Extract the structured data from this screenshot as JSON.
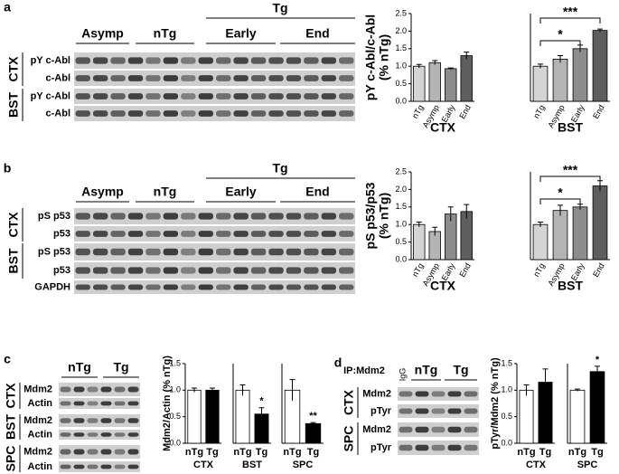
{
  "panel_a": {
    "label": "a",
    "tg": "Tg",
    "groups": [
      "Asymp",
      "nTg",
      "Early",
      "End"
    ],
    "rows": [
      "pY c-Abl",
      "c-Abl",
      "pY c-Abl",
      "c-Abl"
    ],
    "regions": [
      "CTX",
      "BST"
    ]
  },
  "panel_b": {
    "label": "b",
    "tg": "Tg",
    "groups": [
      "Asymp",
      "nTg",
      "Early",
      "End"
    ],
    "rows": [
      "pS p53",
      "p53",
      "pS p53",
      "p53",
      "GAPDH"
    ],
    "regions": [
      "CTX",
      "BST"
    ]
  },
  "panel_c": {
    "label": "c",
    "groups": [
      "nTg",
      "Tg"
    ],
    "rows": [
      "Mdm2",
      "Actin",
      "Mdm2",
      "Actin",
      "Mdm2",
      "Actin"
    ],
    "regions": [
      "CTX",
      "BST",
      "SPC"
    ]
  },
  "panel_d": {
    "label": "d",
    "ip": "IP:Mdm2",
    "igg": "IgG",
    "groups": [
      "nTg",
      "Tg"
    ],
    "rows": [
      "Mdm2",
      "pTyr",
      "Mdm2",
      "pTyr"
    ],
    "regions": [
      "CTX",
      "SPC"
    ]
  },
  "chart_data": [
    {
      "type": "bar",
      "ylabel": [
        "pY c-Abl/c-Abl",
        "(% nTg)"
      ],
      "xlabel": "CTX",
      "categories": [
        "nTg",
        "Asymp",
        "Early",
        "End"
      ],
      "values": [
        1.0,
        1.1,
        0.93,
        1.3
      ],
      "errors": [
        0.05,
        0.06,
        0.02,
        0.1
      ],
      "colors": [
        "#d4d4d4",
        "#b4b4b4",
        "#8c8c8c",
        "#5e5e5e"
      ],
      "ylim": [
        0,
        2.5
      ],
      "yticks": [
        {
          "value": 0,
          "label": "0.0"
        },
        {
          "value": 0.5,
          "label": "0.5"
        },
        {
          "value": 1,
          "label": "1.0"
        },
        {
          "value": 1.5,
          "label": "1.5"
        },
        {
          "value": 2,
          "label": "2.0"
        },
        {
          "value": 2.5,
          "label": "2.5"
        }
      ]
    },
    {
      "type": "bar",
      "xlabel": "BST",
      "categories": [
        "nTg",
        "Asymp",
        "Early",
        "End"
      ],
      "values": [
        1.0,
        1.2,
        1.5,
        2.02
      ],
      "errors": [
        0.06,
        0.1,
        0.1,
        0.04
      ],
      "colors": [
        "#d4d4d4",
        "#b4b4b4",
        "#8c8c8c",
        "#5e5e5e"
      ],
      "ylim": [
        0,
        2.5
      ],
      "brackets": [
        "*",
        "***"
      ]
    },
    {
      "type": "bar",
      "ylabel": [
        "pS p53/p53",
        "(% nTg)"
      ],
      "xlabel": "CTX",
      "categories": [
        "nTg",
        "Asymp",
        "Early",
        "End"
      ],
      "values": [
        1.0,
        0.8,
        1.3,
        1.37
      ],
      "errors": [
        0.07,
        0.12,
        0.2,
        0.2
      ],
      "colors": [
        "#d4d4d4",
        "#b4b4b4",
        "#8c8c8c",
        "#5e5e5e"
      ],
      "ylim": [
        0,
        2.5
      ],
      "yticks": [
        {
          "value": 0,
          "label": "0.0"
        },
        {
          "value": 0.5,
          "label": "0.5"
        },
        {
          "value": 1,
          "label": "1.0"
        },
        {
          "value": 1.5,
          "label": "1.5"
        },
        {
          "value": 2,
          "label": "2.0"
        },
        {
          "value": 2.5,
          "label": "2.5"
        }
      ]
    },
    {
      "type": "bar",
      "xlabel": "BST",
      "categories": [
        "nTg",
        "Asymp",
        "Early",
        "End"
      ],
      "values": [
        1.0,
        1.4,
        1.5,
        2.1
      ],
      "errors": [
        0.07,
        0.15,
        0.08,
        0.15
      ],
      "colors": [
        "#d4d4d4",
        "#b4b4b4",
        "#8c8c8c",
        "#5e5e5e"
      ],
      "ylim": [
        0,
        2.5
      ],
      "brackets": [
        "*",
        "***"
      ]
    },
    {
      "type": "bar",
      "ylabel": [
        "Mdm2/Actin (% nTg)"
      ],
      "xlabel": "CTX",
      "categories": [
        "nTg",
        "Tg"
      ],
      "values": [
        1.0,
        1.0
      ],
      "errors": [
        0.04,
        0.04
      ],
      "colors": [
        "#ffffff",
        "#000000"
      ],
      "ylim": [
        0,
        1.5
      ],
      "yticks": [
        {
          "value": 0,
          "label": "0.0"
        },
        {
          "value": 0.5,
          "label": "0.5"
        },
        {
          "value": 1,
          "label": "1.0"
        },
        {
          "value": 1.5,
          "label": "1.5"
        }
      ]
    },
    {
      "type": "bar",
      "xlabel": "BST",
      "categories": [
        "nTg",
        "Tg"
      ],
      "values": [
        1.0,
        0.55
      ],
      "errors": [
        0.1,
        0.12
      ],
      "colors": [
        "#ffffff",
        "#000000"
      ],
      "ylim": [
        0,
        1.5
      ],
      "significance": [
        null,
        "*"
      ]
    },
    {
      "type": "bar",
      "xlabel": "SPC",
      "categories": [
        "nTg",
        "Tg"
      ],
      "values": [
        1.0,
        0.37
      ],
      "errors": [
        0.2,
        0.02
      ],
      "colors": [
        "#ffffff",
        "#000000"
      ],
      "ylim": [
        0,
        1.5
      ],
      "significance": [
        null,
        "**"
      ]
    },
    {
      "type": "bar",
      "ylabel": [
        "pTyr/Mdm2 (% nTg)"
      ],
      "xlabel": "CTX",
      "categories": [
        "nTg",
        "Tg"
      ],
      "values": [
        1.0,
        1.15
      ],
      "errors": [
        0.1,
        0.25
      ],
      "colors": [
        "#ffffff",
        "#000000"
      ],
      "ylim": [
        0,
        1.5
      ],
      "yticks": [
        {
          "value": 0,
          "label": "0.0"
        },
        {
          "value": 0.5,
          "label": "0.5"
        },
        {
          "value": 1,
          "label": "1.0"
        },
        {
          "value": 1.5,
          "label": "1.5"
        }
      ]
    },
    {
      "type": "bar",
      "xlabel": "SPC",
      "categories": [
        "nTg",
        "Tg"
      ],
      "values": [
        1.0,
        1.35
      ],
      "errors": [
        0.02,
        0.1
      ],
      "colors": [
        "#ffffff",
        "#000000"
      ],
      "ylim": [
        0,
        1.5
      ],
      "significance": [
        null,
        "*"
      ]
    }
  ]
}
